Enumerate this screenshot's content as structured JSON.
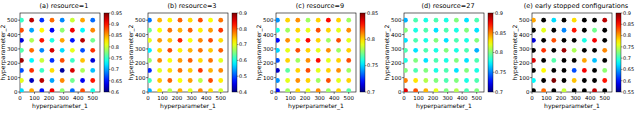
{
  "chart_data": [
    {
      "type": "scatter",
      "title": "(a) resource=1",
      "x_label": "hyperparameter_1",
      "y_label": "hyperparameter_2",
      "xlim": [
        0,
        550
      ],
      "ylim": [
        0,
        550
      ],
      "xticks": [
        0,
        100,
        200,
        300,
        400,
        500
      ],
      "yticks": [
        0,
        100,
        200,
        300,
        400,
        500
      ],
      "x": [
        10,
        80,
        150,
        220,
        290,
        360,
        430,
        500
      ],
      "y": [
        10,
        80,
        150,
        220,
        290,
        360,
        430,
        500
      ],
      "values": [
        [
          0.72,
          0.85,
          0.65,
          0.91,
          0.78,
          0.68,
          0.88,
          0.74
        ],
        [
          0.81,
          0.62,
          0.93,
          0.7,
          0.86,
          0.77,
          0.64,
          0.9
        ],
        [
          0.67,
          0.89,
          0.75,
          0.83,
          0.61,
          0.92,
          0.79,
          0.71
        ],
        [
          0.94,
          0.73,
          0.8,
          0.66,
          0.88,
          0.75,
          0.84,
          0.63
        ],
        [
          0.76,
          0.87,
          0.69,
          0.92,
          0.72,
          0.81,
          0.67,
          0.89
        ],
        [
          0.63,
          0.79,
          0.9,
          0.74,
          0.85,
          0.65,
          0.93,
          0.77
        ],
        [
          0.88,
          0.7,
          0.82,
          0.64,
          0.78,
          0.91,
          0.73,
          0.86
        ],
        [
          0.75,
          0.93,
          0.66,
          0.87,
          0.69,
          0.8,
          0.85,
          0.68
        ]
      ],
      "colorbar_range": [
        0.6,
        0.95
      ],
      "colorbar_ticks": [
        0.6,
        0.65,
        0.7,
        0.75,
        0.8,
        0.85,
        0.9,
        0.95
      ]
    },
    {
      "type": "scatter",
      "title": "(b) resource=3",
      "x_label": "hyperparameter_1",
      "y_label": "hyperparameter_2",
      "xlim": [
        0,
        550
      ],
      "ylim": [
        0,
        550
      ],
      "xticks": [
        0,
        100,
        200,
        300,
        400,
        500
      ],
      "yticks": [
        0,
        100,
        200,
        300,
        400,
        500
      ],
      "x": [
        10,
        80,
        150,
        220,
        290,
        360,
        430,
        500
      ],
      "y": [
        10,
        80,
        150,
        220,
        290,
        360,
        430,
        500
      ],
      "values": [
        [
          0.55,
          0.72,
          0.68,
          0.75,
          0.7,
          0.77,
          0.73,
          0.69
        ],
        [
          0.62,
          0.74,
          0.79,
          0.71,
          0.76,
          0.68,
          0.8,
          0.72
        ],
        [
          0.48,
          0.7,
          0.73,
          0.78,
          0.74,
          0.81,
          0.75,
          0.77
        ],
        [
          0.66,
          0.77,
          0.71,
          0.76,
          0.79,
          0.73,
          0.78,
          0.7
        ],
        [
          0.58,
          0.73,
          0.8,
          0.72,
          0.75,
          0.78,
          0.74,
          0.79
        ],
        [
          0.7,
          0.76,
          0.74,
          0.82,
          0.71,
          0.77,
          0.8,
          0.73
        ],
        [
          0.64,
          0.71,
          0.78,
          0.75,
          0.79,
          0.72,
          0.76,
          0.81
        ],
        [
          0.52,
          0.75,
          0.72,
          0.79,
          0.73,
          0.8,
          0.71,
          0.78
        ]
      ],
      "colorbar_range": [
        0.4,
        0.9
      ],
      "colorbar_ticks": [
        0.4,
        0.5,
        0.6,
        0.7,
        0.8,
        0.9
      ]
    },
    {
      "type": "scatter",
      "title": "(c) resource=9",
      "x_label": "hyperparameter_1",
      "y_label": "hyperparameter_2",
      "xlim": [
        0,
        550
      ],
      "ylim": [
        0,
        550
      ],
      "xticks": [
        0,
        100,
        200,
        300,
        400,
        500
      ],
      "yticks": [
        0,
        100,
        200,
        300,
        400,
        500
      ],
      "x": [
        10,
        80,
        150,
        220,
        290,
        360,
        430,
        500
      ],
      "y": [
        10,
        80,
        150,
        220,
        290,
        360,
        430,
        500
      ],
      "values": [
        [
          0.72,
          0.78,
          0.8,
          0.79,
          0.81,
          0.78,
          0.8,
          0.77
        ],
        [
          0.74,
          0.79,
          0.81,
          0.8,
          0.78,
          0.82,
          0.79,
          0.8
        ],
        [
          0.71,
          0.77,
          0.8,
          0.82,
          0.79,
          0.8,
          0.81,
          0.78
        ],
        [
          0.73,
          0.8,
          0.78,
          0.81,
          0.83,
          0.79,
          0.8,
          0.82
        ],
        [
          0.75,
          0.79,
          0.82,
          0.8,
          0.79,
          0.81,
          0.78,
          0.8
        ],
        [
          0.72,
          0.81,
          0.79,
          0.83,
          0.8,
          0.78,
          0.82,
          0.79
        ],
        [
          0.76,
          0.78,
          0.8,
          0.79,
          0.82,
          0.8,
          0.79,
          0.81
        ],
        [
          0.74,
          0.8,
          0.81,
          0.78,
          0.8,
          0.83,
          0.8,
          0.78
        ]
      ],
      "colorbar_range": [
        0.7,
        0.85
      ],
      "colorbar_ticks": [
        0.7,
        0.75,
        0.8,
        0.85
      ]
    },
    {
      "type": "scatter",
      "title": "(d) resource=27",
      "x_label": "hyperparameter_1",
      "y_label": "hyperparameter_2",
      "xlim": [
        0,
        550
      ],
      "ylim": [
        0,
        550
      ],
      "xticks": [
        0,
        100,
        200,
        300,
        400,
        500
      ],
      "yticks": [
        0,
        100,
        200,
        300,
        400,
        500
      ],
      "x": [
        10,
        80,
        150,
        220,
        290,
        360,
        430,
        500
      ],
      "y": [
        10,
        80,
        150,
        220,
        290,
        360,
        430,
        500
      ],
      "values": [
        [
          0.88,
          0.86,
          0.84,
          0.82,
          0.8,
          0.81,
          0.79,
          0.8
        ],
        [
          0.85,
          0.83,
          0.81,
          0.8,
          0.79,
          0.8,
          0.78,
          0.79
        ],
        [
          0.8,
          0.79,
          0.8,
          0.78,
          0.79,
          0.77,
          0.8,
          0.78
        ],
        [
          0.78,
          0.8,
          0.77,
          0.79,
          0.78,
          0.8,
          0.77,
          0.79
        ],
        [
          0.79,
          0.77,
          0.79,
          0.78,
          0.8,
          0.78,
          0.79,
          0.76
        ],
        [
          0.77,
          0.79,
          0.78,
          0.8,
          0.77,
          0.79,
          0.78,
          0.8
        ],
        [
          0.8,
          0.78,
          0.79,
          0.77,
          0.79,
          0.78,
          0.8,
          0.77
        ],
        [
          0.76,
          0.79,
          0.78,
          0.79,
          0.78,
          0.8,
          0.77,
          0.79
        ]
      ],
      "colorbar_range": [
        0.7,
        0.9
      ],
      "colorbar_ticks": [
        0.7,
        0.75,
        0.8,
        0.85,
        0.9
      ]
    },
    {
      "type": "scatter",
      "title": "(e) early stopped configurations",
      "x_label": "hyperparameter_1",
      "y_label": "hyperparameter_2",
      "xlim": [
        0,
        550
      ],
      "ylim": [
        0,
        550
      ],
      "xticks": [
        0,
        100,
        200,
        300,
        400,
        500
      ],
      "yticks": [
        0,
        100,
        200,
        300,
        400,
        500
      ],
      "x": [
        10,
        80,
        150,
        220,
        290,
        360,
        430,
        500
      ],
      "y": [
        10,
        80,
        150,
        220,
        290,
        360,
        430,
        500
      ],
      "values": [
        [
          null,
          0.82,
          null,
          0.75,
          null,
          null,
          0.88,
          null
        ],
        [
          0.68,
          null,
          0.9,
          null,
          0.79,
          null,
          null,
          0.85
        ],
        [
          null,
          0.77,
          null,
          null,
          0.62,
          0.86,
          null,
          0.73
        ],
        [
          0.87,
          null,
          0.71,
          null,
          null,
          0.8,
          0.66,
          null
        ],
        [
          null,
          0.84,
          null,
          0.89,
          0.74,
          null,
          null,
          0.81
        ],
        [
          0.58,
          null,
          0.83,
          null,
          null,
          0.69,
          0.86,
          null
        ],
        [
          null,
          0.76,
          null,
          0.64,
          0.85,
          null,
          0.72,
          null
        ],
        [
          0.8,
          null,
          0.67,
          null,
          0.78,
          null,
          null,
          0.88
        ]
      ],
      "colorbar_range": [
        0.55,
        0.9
      ],
      "colorbar_ticks": [
        0.55,
        0.6,
        0.65,
        0.7,
        0.75,
        0.8,
        0.85,
        0.9
      ]
    }
  ]
}
